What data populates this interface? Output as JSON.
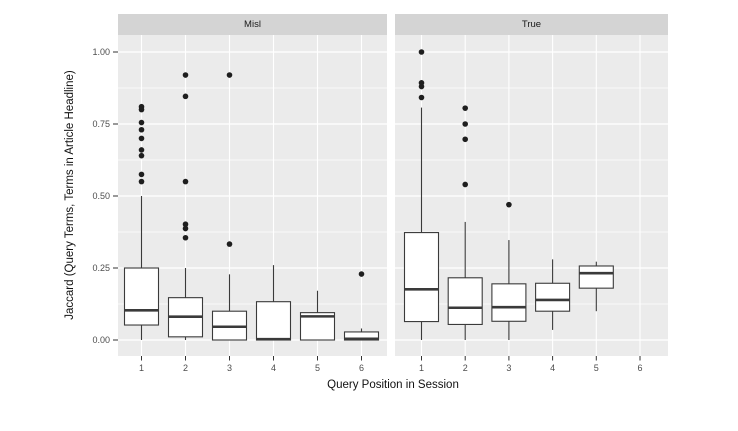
{
  "chart_data": {
    "type": "boxplot",
    "title": "",
    "xlabel": "Query Position in Session",
    "ylabel": "Jaccard (Query Terms, Terms in Article Headline)",
    "legend": "none",
    "x_categories": [
      "1",
      "2",
      "3",
      "4",
      "5",
      "6"
    ],
    "y_tick_values": [
      0,
      0.25,
      0.5,
      0.75,
      1.0
    ],
    "y_tick_labels": [
      "0.00",
      "0.25",
      "0.50",
      "0.75",
      "1.00"
    ],
    "y_minor_values": [
      0.125,
      0.375,
      0.625,
      0.875
    ],
    "ylim": [
      -0.056,
      1.056
    ],
    "grid": "horizontal major+minor white lines, vertical white line per category",
    "facets": [
      {
        "label": "Misl",
        "boxes": [
          {
            "category": "1",
            "whisker_low": 0,
            "q1": 0.052,
            "median": 0.103,
            "q3": 0.25,
            "whisker_high": 0.5,
            "outliers": [
              0.55,
              0.575,
              0.64,
              0.66,
              0.7,
              0.73,
              0.755,
              0.8,
              0.81
            ]
          },
          {
            "category": "2",
            "whisker_low": 0,
            "q1": 0.011,
            "median": 0.081,
            "q3": 0.147,
            "whisker_high": 0.25,
            "outliers": [
              0.355,
              0.387,
              0.402,
              0.55,
              0.846,
              0.92
            ]
          },
          {
            "category": "3",
            "whisker_low": 0,
            "q1": 0.0,
            "median": 0.046,
            "q3": 0.1,
            "whisker_high": 0.228,
            "outliers": [
              0.333,
              0.92
            ]
          },
          {
            "category": "4",
            "whisker_low": 0,
            "q1": 0.0,
            "median": 0.003,
            "q3": 0.133,
            "whisker_high": 0.26,
            "outliers": []
          },
          {
            "category": "5",
            "whisker_low": 0,
            "q1": 0.0,
            "median": 0.082,
            "q3": 0.095,
            "whisker_high": 0.171,
            "outliers": []
          },
          {
            "category": "6",
            "whisker_low": 0,
            "q1": 0.0,
            "median": 0.004,
            "q3": 0.028,
            "whisker_high": 0.04,
            "outliers": [
              0.229
            ]
          }
        ]
      },
      {
        "label": "True",
        "boxes": [
          {
            "category": "1",
            "whisker_low": 0,
            "q1": 0.064,
            "median": 0.176,
            "q3": 0.373,
            "whisker_high": 0.807,
            "outliers": [
              0.842,
              0.88,
              0.893,
              1.0
            ]
          },
          {
            "category": "2",
            "whisker_low": 0,
            "q1": 0.054,
            "median": 0.112,
            "q3": 0.216,
            "whisker_high": 0.41,
            "outliers": [
              0.54,
              0.697,
              0.75,
              0.805
            ]
          },
          {
            "category": "3",
            "whisker_low": 0,
            "q1": 0.065,
            "median": 0.114,
            "q3": 0.195,
            "whisker_high": 0.347,
            "outliers": [
              0.47
            ]
          },
          {
            "category": "4",
            "whisker_low": 0.035,
            "q1": 0.1,
            "median": 0.139,
            "q3": 0.197,
            "whisker_high": 0.28,
            "outliers": []
          },
          {
            "category": "5",
            "whisker_low": 0.1,
            "q1": 0.18,
            "median": 0.232,
            "q3": 0.257,
            "whisker_high": 0.272,
            "outliers": []
          }
        ]
      }
    ],
    "colors": {
      "background": "#FFFFFF",
      "panel_bg": "#EBEBEB",
      "strip_bg": "#D4D4D4",
      "gridline": "#FFFFFF",
      "box_stroke": "#3A3A3A",
      "box_fill": "#FFFFFF",
      "outlier_fill": "#1E1E1E",
      "tick_mark": "#333333",
      "tick_label": "#4D4D4D",
      "axis_title": "#111111",
      "strip_text": "#1A1A1A"
    }
  }
}
